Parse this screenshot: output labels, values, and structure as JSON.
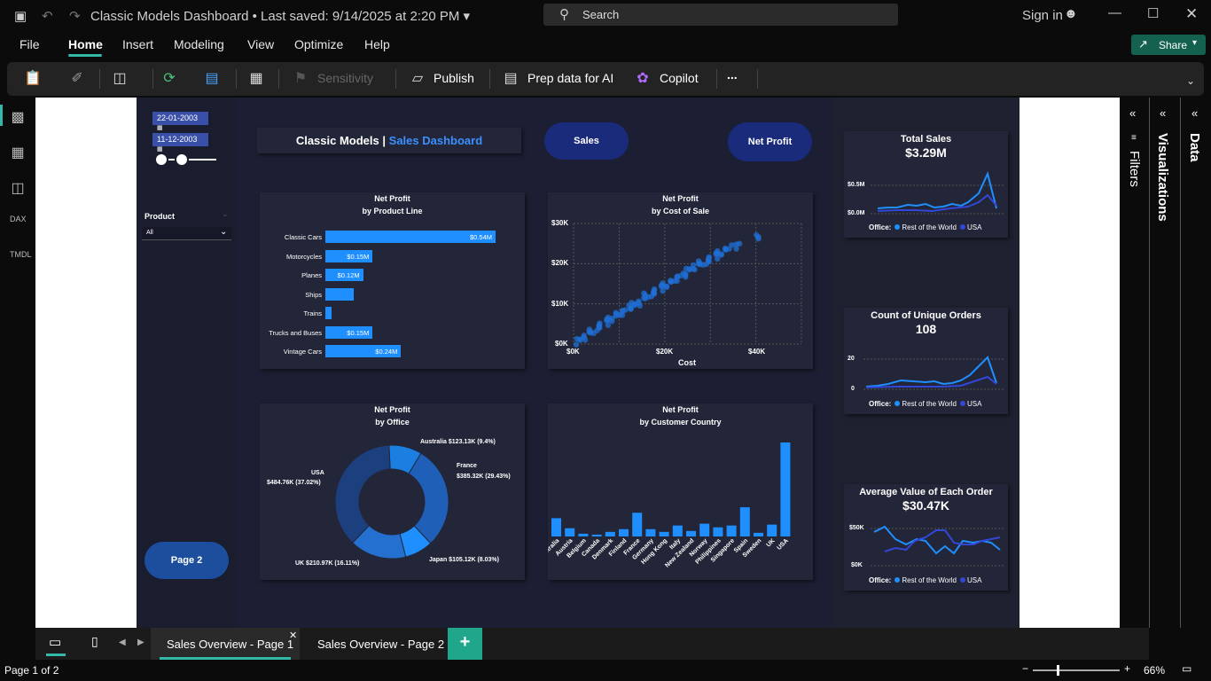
{
  "titlebar": {
    "title": "Classic Models Dashboard",
    "saved": "• Last saved: 9/14/2025 at 2:20 PM",
    "search_placeholder": "Search",
    "signin": "Sign in"
  },
  "menu": [
    "File",
    "Home",
    "Insert",
    "Modeling",
    "View",
    "Optimize",
    "Help"
  ],
  "share_label": "Share",
  "ribbon": {
    "sensitivity": "Sensitivity",
    "publish": "Publish",
    "prep": "Prep data for AI",
    "copilot": "Copilot",
    "more": "..."
  },
  "slicers": {
    "date_from": "22-01-2003",
    "date_to": "11-12-2003",
    "product_label": "Product",
    "product_value": "All",
    "page2_button": "Page 2"
  },
  "header": {
    "title_main": "Classic Models",
    "title_sep": "|",
    "title_accent": "Sales Dashboard",
    "sales_button": "Sales",
    "netprofit_button": "Net Profit"
  },
  "charts": {
    "product_line": {
      "title1": "Net Profit",
      "title2": "by Product Line",
      "categories": [
        "Classic Cars",
        "Motorcycles",
        "Planes",
        "Ships",
        "Trains",
        "Trucks and Buses",
        "Vintage Cars"
      ],
      "values": [
        0.54,
        0.15,
        0.12,
        0.09,
        0.02,
        0.15,
        0.24
      ],
      "labels": [
        "$0.54M",
        "$0.15M",
        "$0.12M",
        "",
        "",
        "$0.15M",
        "$0.24M"
      ]
    },
    "cost_of_sale": {
      "title1": "Net Profit",
      "title2": "by Cost of Sale",
      "xlabel": "Cost",
      "xticks": [
        "$0K",
        "$20K",
        "$40K"
      ],
      "yticks": [
        "$0K",
        "$10K",
        "$20K",
        "$30K"
      ]
    },
    "office": {
      "title1": "Net Profit",
      "title2": "by Office",
      "slices": [
        {
          "label": "USA",
          "value_label": "$484.76K (37.02%)",
          "pct": 37.02
        },
        {
          "label": "Australia",
          "value_label": "Australia $123.13K (9.4%)",
          "pct": 9.4
        },
        {
          "label": "France",
          "value_label": "$385.32K (29.43%)",
          "pct": 29.43
        },
        {
          "label": "Japan",
          "value_label": "Japan $105.12K (8.03%)",
          "pct": 8.03
        },
        {
          "label": "UK",
          "value_label": "UK $210.97K (16.11%)",
          "pct": 16.11
        }
      ]
    },
    "country": {
      "title1": "Net Profit",
      "title2": "by Customer Country",
      "categories": [
        "Australia",
        "Austria",
        "Belgium",
        "Canada",
        "Denmark",
        "Finland",
        "France",
        "Germany",
        "Hong Kong",
        "Italy",
        "New Zealand",
        "Norway",
        "Philippines",
        "Singapore",
        "Spain",
        "Sweden",
        "UK",
        "USA"
      ]
    }
  },
  "kpis": [
    {
      "title": "Total Sales",
      "value": "$3.29M",
      "ticks": [
        "$0.5M",
        "$0.0M"
      ]
    },
    {
      "title": "Count of Unique Orders",
      "value": "108",
      "ticks": [
        "20",
        "0"
      ]
    },
    {
      "title": "Average Value of Each Order",
      "value": "$30.47K",
      "ticks": [
        "$50K",
        "$0K"
      ]
    }
  ],
  "legend": {
    "label": "Office:",
    "s1": "Rest of the World",
    "s2": "USA"
  },
  "panes": {
    "filters": "Filters",
    "visualizations": "Visualizations",
    "data": "Data"
  },
  "pages": [
    "Sales Overview - Page 1",
    "Sales Overview - Page 2"
  ],
  "status": {
    "page": "Page 1 of 2",
    "zoom": "66%"
  },
  "chart_data": [
    {
      "type": "bar",
      "title": "Net Profit by Product Line",
      "categories": [
        "Classic Cars",
        "Motorcycles",
        "Planes",
        "Ships",
        "Trains",
        "Trucks and Buses",
        "Vintage Cars"
      ],
      "values": [
        0.54,
        0.15,
        0.12,
        0.09,
        0.02,
        0.15,
        0.24
      ]
    },
    {
      "type": "bar",
      "title": "Net Profit by Customer Country",
      "categories": [
        "Australia",
        "Austria",
        "Belgium",
        "Canada",
        "Denmark",
        "Finland",
        "France",
        "Germany",
        "Hong Kong",
        "Italy",
        "New Zealand",
        "Norway",
        "Philippines",
        "Singapore",
        "Spain",
        "Sweden",
        "UK",
        "USA"
      ],
      "values": [
        20,
        9,
        3,
        2,
        5,
        8,
        26,
        8,
        5,
        12,
        6,
        14,
        10,
        12,
        32,
        4,
        13,
        103
      ]
    },
    {
      "type": "pie",
      "title": "Net Profit by Office",
      "categories": [
        "USA",
        "Australia",
        "France",
        "Japan",
        "UK"
      ],
      "values": [
        484.76,
        123.13,
        385.32,
        105.12,
        210.97
      ]
    },
    {
      "type": "scatter",
      "title": "Net Profit by Cost of Sale",
      "xlabel": "Cost",
      "x": [
        1,
        2,
        3,
        4,
        5,
        6,
        7,
        8,
        9,
        10,
        11,
        12,
        13,
        14,
        15,
        16,
        17,
        18,
        19,
        20,
        21,
        22,
        23,
        24,
        25,
        26,
        27,
        28,
        29,
        30,
        31,
        32,
        33,
        34,
        36,
        40
      ],
      "y": [
        0.5,
        1.5,
        2.5,
        3,
        4,
        4.5,
        5.5,
        6,
        7,
        7.5,
        8,
        9,
        9.5,
        10,
        11,
        12,
        12.5,
        13,
        14,
        14.5,
        15,
        16,
        16.5,
        17,
        18,
        19,
        19.5,
        20,
        20.5,
        21,
        22,
        22.5,
        23,
        24,
        24.5,
        26.5
      ],
      "xlim": [
        0,
        50
      ],
      "ylim": [
        0,
        30
      ]
    }
  ]
}
